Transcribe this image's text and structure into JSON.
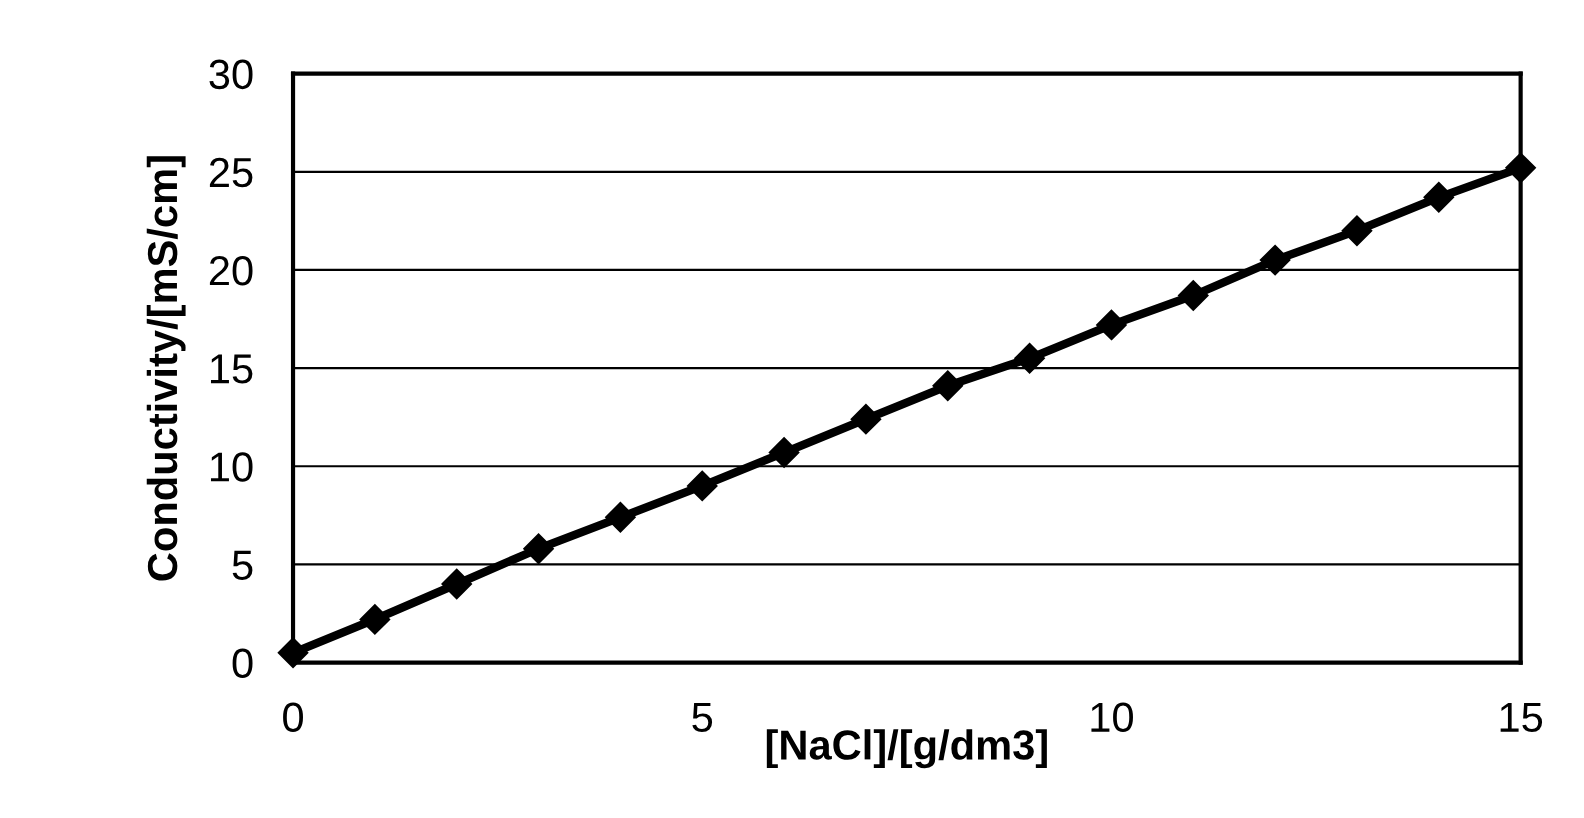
{
  "chart_data": {
    "type": "line",
    "xlabel": "[NaCl]/[g/dm3]",
    "ylabel": "Conductivity/[mS/cm]",
    "x": [
      0,
      1,
      2,
      3,
      4,
      5,
      6,
      7,
      8,
      9,
      10,
      11,
      12,
      13,
      14,
      15
    ],
    "series": [
      {
        "color": "#000000",
        "values": [
          0.5,
          2.2,
          4.0,
          5.8,
          7.4,
          9.0,
          10.7,
          12.4,
          14.1,
          15.5,
          17.2,
          18.7,
          20.5,
          22.0,
          23.7,
          25.2
        ]
      }
    ],
    "xlim": [
      0,
      15
    ],
    "xticks": [
      0,
      5,
      10,
      15
    ],
    "ylim": [
      0,
      30
    ],
    "yticks": [
      0,
      5,
      10,
      15,
      20,
      25,
      30
    ],
    "grid": "y",
    "marker": "diamond",
    "line_style": "solid"
  }
}
